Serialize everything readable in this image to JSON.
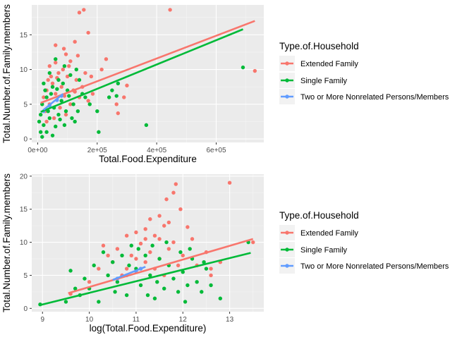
{
  "chart_data": [
    {
      "type": "scatter",
      "title": "",
      "xlabel": "Total.Food.Expenditure",
      "ylabel": "Total.Number.of.Family.members",
      "xlim": [
        -20000,
        760000
      ],
      "ylim": [
        -0.5,
        19.3
      ],
      "xticks": [
        {
          "v": 0,
          "label": "0e+00"
        },
        {
          "v": 200000,
          "label": "2e+05"
        },
        {
          "v": 400000,
          "label": "4e+05"
        },
        {
          "v": 600000,
          "label": "6e+05"
        }
      ],
      "yticks": [
        {
          "v": 0,
          "label": "0"
        },
        {
          "v": 5,
          "label": "5"
        },
        {
          "v": 10,
          "label": "10"
        },
        {
          "v": 15,
          "label": "15"
        }
      ],
      "grid": true,
      "legend": {
        "title": "Type.of.Household",
        "position": "right",
        "entries": [
          {
            "name": "Extended Family",
            "color": "#f8766d"
          },
          {
            "name": "Single Family",
            "color": "#00ba38"
          },
          {
            "name": "Two or More Nonrelated Persons/Members",
            "color": "#619cff"
          }
        ]
      },
      "series": [
        {
          "name": "Extended Family",
          "color": "#f8766d",
          "points": [
            [
              140000,
              18.2
            ],
            [
              155000,
              18.6
            ],
            [
              445000,
              18.6
            ],
            [
              170000,
              15.3
            ],
            [
              125000,
              14.0
            ],
            [
              60000,
              13.5
            ],
            [
              88000,
              13.0
            ],
            [
              95000,
              12.2
            ],
            [
              135000,
              12.0
            ],
            [
              230000,
              11.5
            ],
            [
              60000,
              11.0
            ],
            [
              40000,
              10.5
            ],
            [
              110000,
              11.2
            ],
            [
              215000,
              10.0
            ],
            [
              180000,
              9.0
            ],
            [
              300000,
              7.7
            ],
            [
              290000,
              6.0
            ],
            [
              265000,
              5.0
            ],
            [
              270000,
              3.7
            ],
            [
              730000,
              9.8
            ],
            [
              35000,
              8.5
            ],
            [
              70000,
              9.5
            ],
            [
              100000,
              9.0
            ],
            [
              50000,
              8.0
            ],
            [
              130000,
              8.5
            ],
            [
              160000,
              9.5
            ],
            [
              80000,
              7.5
            ],
            [
              30000,
              7.0
            ],
            [
              120000,
              7.0
            ],
            [
              60000,
              6.5
            ],
            [
              90000,
              6.2
            ],
            [
              150000,
              7.5
            ],
            [
              40000,
              5.0
            ],
            [
              75000,
              4.5
            ],
            [
              110000,
              5.0
            ],
            [
              55000,
              3.0
            ],
            [
              25000,
              4.0
            ],
            [
              140000,
              6.0
            ],
            [
              185000,
              6.5
            ],
            [
              20000,
              6.0
            ],
            [
              85000,
              10.0
            ],
            [
              65000,
              8.8
            ],
            [
              105000,
              10.5
            ],
            [
              45000,
              9.0
            ],
            [
              125000,
              6.8
            ],
            [
              30000,
              2.5
            ],
            [
              95000,
              3.5
            ],
            [
              170000,
              5.5
            ]
          ]
        },
        {
          "name": "Single Family",
          "color": "#00ba38",
          "points": [
            [
              690000,
              10.3
            ],
            [
              365000,
              2.0
            ],
            [
              270000,
              8.0
            ],
            [
              250000,
              7.0
            ],
            [
              240000,
              6.0
            ],
            [
              265000,
              6.2
            ],
            [
              200000,
              4.0
            ],
            [
              135000,
              4.0
            ],
            [
              205000,
              1.0
            ],
            [
              60000,
              11.5
            ],
            [
              90000,
              10.5
            ],
            [
              130000,
              10.0
            ],
            [
              110000,
              9.2
            ],
            [
              40000,
              9.5
            ],
            [
              70000,
              8.5
            ],
            [
              20000,
              8.0
            ],
            [
              50000,
              7.5
            ],
            [
              100000,
              7.0
            ],
            [
              150000,
              6.5
            ],
            [
              30000,
              6.0
            ],
            [
              80000,
              5.5
            ],
            [
              120000,
              5.0
            ],
            [
              15000,
              5.0
            ],
            [
              55000,
              4.5
            ],
            [
              95000,
              4.0
            ],
            [
              10000,
              3.5
            ],
            [
              40000,
              3.0
            ],
            [
              75000,
              2.8
            ],
            [
              20000,
              2.0
            ],
            [
              60000,
              1.8
            ],
            [
              10000,
              1.0
            ],
            [
              30000,
              1.0
            ],
            [
              50000,
              0.5
            ],
            [
              15000,
              0.3
            ],
            [
              45000,
              6.5
            ],
            [
              65000,
              7.2
            ],
            [
              85000,
              8.0
            ],
            [
              25000,
              7.0
            ],
            [
              140000,
              8.5
            ],
            [
              105000,
              6.2
            ],
            [
              160000,
              6.0
            ],
            [
              175000,
              5.0
            ],
            [
              35000,
              4.0
            ],
            [
              115000,
              3.0
            ],
            [
              90000,
              2.0
            ],
            [
              5000,
              2.5
            ],
            [
              70000,
              3.5
            ],
            [
              125000,
              2.5
            ]
          ]
        },
        {
          "name": "Two or More Nonrelated Persons/Members",
          "color": "#619cff",
          "points": [
            [
              20000,
              4.0
            ],
            [
              40000,
              4.8
            ],
            [
              65000,
              5.6
            ],
            [
              80000,
              6.2
            ]
          ]
        }
      ],
      "fit_lines": [
        {
          "series": "Extended Family",
          "x": [
            10000,
            730000
          ],
          "y": [
            5.2,
            17.0
          ]
        },
        {
          "series": "Single Family",
          "x": [
            10000,
            690000
          ],
          "y": [
            3.9,
            15.8
          ]
        },
        {
          "series": "Two or More Nonrelated Persons/Members",
          "x": [
            20000,
            85000
          ],
          "y": [
            4.2,
            6.5
          ]
        }
      ]
    },
    {
      "type": "scatter",
      "title": "",
      "xlabel": "log(Total.Food.Expenditure)",
      "ylabel": "Total.Number.of.Family.members",
      "xlim": [
        8.77,
        13.73
      ],
      "ylim": [
        -0.5,
        20.3
      ],
      "xticks": [
        {
          "v": 9,
          "label": "9"
        },
        {
          "v": 10,
          "label": "10"
        },
        {
          "v": 11,
          "label": "11"
        },
        {
          "v": 12,
          "label": "12"
        },
        {
          "v": 13,
          "label": "13"
        }
      ],
      "yticks": [
        {
          "v": 0,
          "label": "0"
        },
        {
          "v": 5,
          "label": "5"
        },
        {
          "v": 10,
          "label": "10"
        },
        {
          "v": 15,
          "label": "15"
        },
        {
          "v": 20,
          "label": "20"
        }
      ],
      "grid": true,
      "legend": {
        "title": "Type.of.Household",
        "position": "right",
        "entries": [
          {
            "name": "Extended Family",
            "color": "#f8766d"
          },
          {
            "name": "Single Family",
            "color": "#00ba38"
          },
          {
            "name": "Two or More Nonrelated Persons/Members",
            "color": "#619cff"
          }
        ]
      },
      "series": [
        {
          "name": "Extended Family",
          "color": "#f8766d",
          "points": [
            [
              13.0,
              19.0
            ],
            [
              11.85,
              18.8
            ],
            [
              11.8,
              17.5
            ],
            [
              11.65,
              16.5
            ],
            [
              11.95,
              15.0
            ],
            [
              11.5,
              14.0
            ],
            [
              11.3,
              13.5
            ],
            [
              11.7,
              13.0
            ],
            [
              11.2,
              12.0
            ],
            [
              11.6,
              12.5
            ],
            [
              12.1,
              12.3
            ],
            [
              10.8,
              11.0
            ],
            [
              11.0,
              11.5
            ],
            [
              11.4,
              11.0
            ],
            [
              12.2,
              10.5
            ],
            [
              13.5,
              10.0
            ],
            [
              12.5,
              8.5
            ],
            [
              12.6,
              6.0
            ],
            [
              12.6,
              5.0
            ],
            [
              10.3,
              9.5
            ],
            [
              10.6,
              9.0
            ],
            [
              11.1,
              9.8
            ],
            [
              11.3,
              8.5
            ],
            [
              11.7,
              9.0
            ],
            [
              12.0,
              8.0
            ],
            [
              10.9,
              8.0
            ],
            [
              11.5,
              7.5
            ],
            [
              10.5,
              7.0
            ],
            [
              11.2,
              7.0
            ],
            [
              11.9,
              6.5
            ],
            [
              10.2,
              6.0
            ],
            [
              10.8,
              6.0
            ],
            [
              11.4,
              6.0
            ],
            [
              12.3,
              6.5
            ],
            [
              9.6,
              2.2
            ],
            [
              10.0,
              4.0
            ],
            [
              10.7,
              5.0
            ],
            [
              11.6,
              5.0
            ],
            [
              12.8,
              7.0
            ],
            [
              10.4,
              8.0
            ],
            [
              11.8,
              10.0
            ],
            [
              11.0,
              7.5
            ],
            [
              11.2,
              10.5
            ],
            [
              11.5,
              10.5
            ]
          ]
        },
        {
          "name": "Single Family",
          "color": "#00ba38",
          "points": [
            [
              8.95,
              0.6
            ],
            [
              9.6,
              5.7
            ],
            [
              9.5,
              1.0
            ],
            [
              9.8,
              2.0
            ],
            [
              10.0,
              3.0
            ],
            [
              10.2,
              1.0
            ],
            [
              10.3,
              8.5
            ],
            [
              10.5,
              7.0
            ],
            [
              10.6,
              4.0
            ],
            [
              10.8,
              2.0
            ],
            [
              10.9,
              9.5
            ],
            [
              11.0,
              6.0
            ],
            [
              11.1,
              3.5
            ],
            [
              11.2,
              8.0
            ],
            [
              11.3,
              5.0
            ],
            [
              11.4,
              1.5
            ],
            [
              11.5,
              7.5
            ],
            [
              11.6,
              3.0
            ],
            [
              11.7,
              6.5
            ],
            [
              11.8,
              4.5
            ],
            [
              11.9,
              2.5
            ],
            [
              12.0,
              5.5
            ],
            [
              12.1,
              3.5
            ],
            [
              12.2,
              7.5
            ],
            [
              12.3,
              4.0
            ],
            [
              12.4,
              2.5
            ],
            [
              12.5,
              6.0
            ],
            [
              12.6,
              3.5
            ],
            [
              12.8,
              1.5
            ],
            [
              13.4,
              10.0
            ],
            [
              10.1,
              6.5
            ],
            [
              10.4,
              5.0
            ],
            [
              10.7,
              8.0
            ],
            [
              11.05,
              9.0
            ],
            [
              11.35,
              9.5
            ],
            [
              11.65,
              10.0
            ],
            [
              11.95,
              8.5
            ],
            [
              12.15,
              9.0
            ],
            [
              9.9,
              4.5
            ],
            [
              10.55,
              2.5
            ],
            [
              11.45,
              4.0
            ],
            [
              12.05,
              1.0
            ],
            [
              12.45,
              7.0
            ],
            [
              11.25,
              2.0
            ],
            [
              10.85,
              6.5
            ],
            [
              9.7,
              3.0
            ]
          ]
        },
        {
          "name": "Two or More Nonrelated Persons/Members",
          "color": "#619cff",
          "points": [
            [
              10.6,
              4.5
            ],
            [
              10.8,
              5.0
            ],
            [
              11.0,
              5.6
            ],
            [
              11.1,
              6.0
            ]
          ]
        }
      ],
      "fit_lines": [
        {
          "series": "Extended Family",
          "x": [
            9.55,
            13.5
          ],
          "y": [
            2.3,
            10.5
          ]
        },
        {
          "series": "Single Family",
          "x": [
            8.95,
            13.45
          ],
          "y": [
            0.5,
            8.4
          ]
        },
        {
          "series": "Two or More Nonrelated Persons/Members",
          "x": [
            10.5,
            11.2
          ],
          "y": [
            4.3,
            6.3
          ]
        }
      ]
    }
  ]
}
